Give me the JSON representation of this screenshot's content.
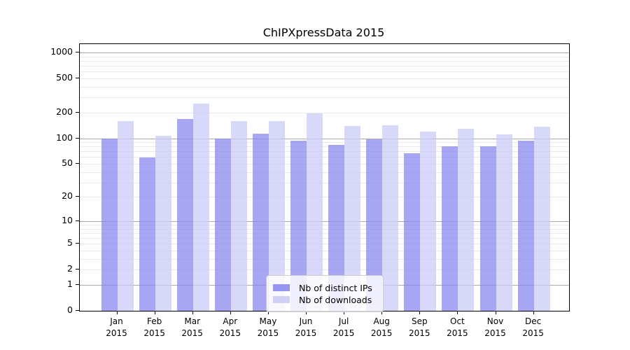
{
  "chart_data": {
    "type": "bar",
    "title": "ChIPXpressData 2015",
    "categories": [
      "Jan",
      "Feb",
      "Mar",
      "Apr",
      "May",
      "Jun",
      "Jul",
      "Aug",
      "Sep",
      "Oct",
      "Nov",
      "Dec"
    ],
    "year_label": "2015",
    "series": [
      {
        "name": "Nb of distinct IPs",
        "key": "distinct-ips",
        "color": "#8484ee",
        "values": [
          100,
          59,
          167,
          100,
          113,
          93,
          84,
          97,
          67,
          81,
          80,
          93
        ]
      },
      {
        "name": "Nb of downloads",
        "key": "downloads",
        "color": "#c9c9f5",
        "values": [
          160,
          107,
          256,
          160,
          158,
          197,
          140,
          143,
          120,
          128,
          112,
          136
        ]
      }
    ],
    "y_ticks": [
      1000,
      500,
      200,
      100,
      50,
      20,
      10,
      5,
      2,
      1,
      0
    ],
    "y_major_gridlines": [
      1,
      10,
      100,
      1000
    ],
    "y_scale": "log10(1+value)",
    "ylim": [
      0,
      1270
    ],
    "xlabel": "",
    "ylabel": "",
    "grid": "on",
    "legend_position": "inside-bottom-center"
  }
}
